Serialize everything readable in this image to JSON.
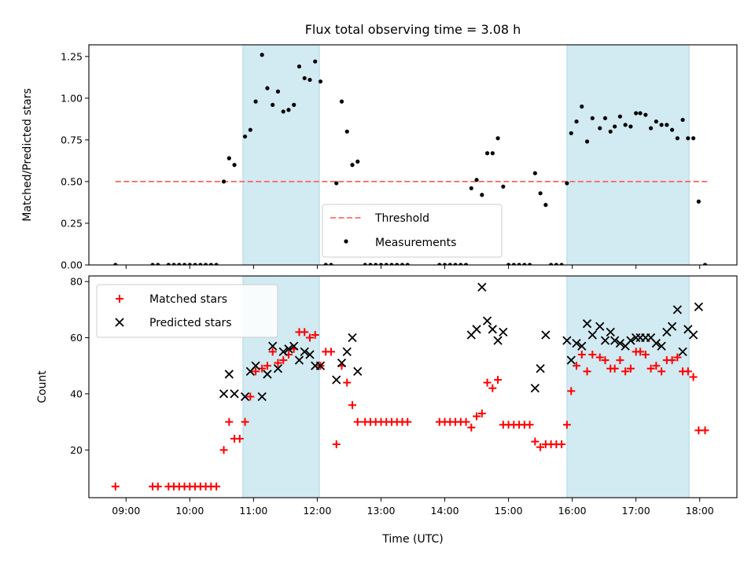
{
  "title": "Flux total observing time = 3.08 h",
  "colors": {
    "shade": "#add8e6",
    "threshold": "#ff6b6b",
    "measurement": "#000000",
    "matched": "#ff0000",
    "predicted": "#000000"
  },
  "chart_data": [
    {
      "type": "scatter",
      "ylabel": "Matched/Predicted stars",
      "ylim": [
        0,
        1.32
      ],
      "xlim": [
        "08:25",
        "18:35"
      ],
      "yticks": [
        0,
        0.25,
        0.5,
        0.75,
        1.0,
        1.25
      ],
      "ytick_labels": [
        "0.00",
        "0.25",
        "0.50",
        "0.75",
        "1.00",
        "1.25"
      ],
      "legend_position": "lower-center",
      "shaded_intervals": [
        [
          "10:50",
          "12:02"
        ],
        [
          "15:55",
          "17:50"
        ]
      ],
      "threshold": {
        "name": "Threshold",
        "value": 0.5,
        "x_range": [
          "08:50",
          "18:08"
        ]
      },
      "series": [
        {
          "name": "Measurements",
          "points": [
            [
              "08:50",
              0
            ],
            [
              "09:25",
              0
            ],
            [
              "09:30",
              0
            ],
            [
              "09:40",
              0
            ],
            [
              "09:45",
              0
            ],
            [
              "09:50",
              0
            ],
            [
              "09:55",
              0
            ],
            [
              "10:00",
              0
            ],
            [
              "10:05",
              0
            ],
            [
              "10:10",
              0
            ],
            [
              "10:15",
              0
            ],
            [
              "10:20",
              0
            ],
            [
              "10:25",
              0
            ],
            [
              "10:32",
              0.5
            ],
            [
              "10:37",
              0.64
            ],
            [
              "10:42",
              0.6
            ],
            [
              "10:52",
              0.77
            ],
            [
              "10:57",
              0.81
            ],
            [
              "11:02",
              0.98
            ],
            [
              "11:08",
              1.26
            ],
            [
              "11:13",
              1.06
            ],
            [
              "11:18",
              0.96
            ],
            [
              "11:23",
              1.04
            ],
            [
              "11:28",
              0.92
            ],
            [
              "11:33",
              0.93
            ],
            [
              "11:38",
              0.96
            ],
            [
              "11:43",
              1.19
            ],
            [
              "11:48",
              1.12
            ],
            [
              "11:53",
              1.11
            ],
            [
              "11:58",
              1.22
            ],
            [
              "12:03",
              1.1
            ],
            [
              "12:08",
              0
            ],
            [
              "12:13",
              0
            ],
            [
              "12:18",
              0.49
            ],
            [
              "12:23",
              0.98
            ],
            [
              "12:28",
              0.8
            ],
            [
              "12:33",
              0.6
            ],
            [
              "12:38",
              0.62
            ],
            [
              "12:45",
              0
            ],
            [
              "12:50",
              0
            ],
            [
              "12:55",
              0
            ],
            [
              "13:00",
              0
            ],
            [
              "13:05",
              0
            ],
            [
              "13:10",
              0
            ],
            [
              "13:15",
              0
            ],
            [
              "13:20",
              0
            ],
            [
              "13:25",
              0
            ],
            [
              "13:55",
              0
            ],
            [
              "14:00",
              0
            ],
            [
              "14:05",
              0
            ],
            [
              "14:10",
              0
            ],
            [
              "14:15",
              0
            ],
            [
              "14:20",
              0
            ],
            [
              "14:25",
              0.46
            ],
            [
              "14:30",
              0.51
            ],
            [
              "14:35",
              0.42
            ],
            [
              "14:40",
              0.67
            ],
            [
              "14:45",
              0.67
            ],
            [
              "14:50",
              0.76
            ],
            [
              "14:55",
              0.47
            ],
            [
              "15:00",
              0
            ],
            [
              "15:05",
              0
            ],
            [
              "15:10",
              0
            ],
            [
              "15:15",
              0
            ],
            [
              "15:20",
              0
            ],
            [
              "15:25",
              0.55
            ],
            [
              "15:30",
              0.43
            ],
            [
              "15:35",
              0.36
            ],
            [
              "15:40",
              0
            ],
            [
              "15:45",
              0
            ],
            [
              "15:50",
              0
            ],
            [
              "15:55",
              0.49
            ],
            [
              "15:59",
              0.79
            ],
            [
              "16:04",
              0.86
            ],
            [
              "16:09",
              0.95
            ],
            [
              "16:14",
              0.74
            ],
            [
              "16:19",
              0.88
            ],
            [
              "16:26",
              0.82
            ],
            [
              "16:31",
              0.88
            ],
            [
              "16:36",
              0.8
            ],
            [
              "16:40",
              0.83
            ],
            [
              "16:45",
              0.89
            ],
            [
              "16:50",
              0.84
            ],
            [
              "16:55",
              0.83
            ],
            [
              "17:00",
              0.91
            ],
            [
              "17:04",
              0.91
            ],
            [
              "17:09",
              0.9
            ],
            [
              "17:14",
              0.82
            ],
            [
              "17:19",
              0.86
            ],
            [
              "17:24",
              0.84
            ],
            [
              "17:29",
              0.84
            ],
            [
              "17:34",
              0.81
            ],
            [
              "17:39",
              0.76
            ],
            [
              "17:44",
              0.87
            ],
            [
              "17:49",
              0.76
            ],
            [
              "17:54",
              0.76
            ],
            [
              "17:59",
              0.38
            ],
            [
              "18:05",
              0
            ]
          ]
        }
      ]
    },
    {
      "type": "scatter",
      "xlabel": "Time (UTC)",
      "ylabel": "Count",
      "ylim": [
        3,
        82
      ],
      "xlim": [
        "08:25",
        "18:35"
      ],
      "yticks": [
        20,
        40,
        60,
        80
      ],
      "ytick_labels": [
        "20",
        "40",
        "60",
        "80"
      ],
      "xticks": [
        "09:00",
        "10:00",
        "11:00",
        "12:00",
        "13:00",
        "14:00",
        "15:00",
        "16:00",
        "17:00",
        "18:00"
      ],
      "legend_position": "top-left",
      "shaded_intervals": [
        [
          "10:50",
          "12:02"
        ],
        [
          "15:55",
          "17:50"
        ]
      ],
      "series": [
        {
          "name": "Matched stars",
          "points": [
            [
              "08:50",
              7
            ],
            [
              "09:25",
              7
            ],
            [
              "09:30",
              7
            ],
            [
              "09:40",
              7
            ],
            [
              "09:45",
              7
            ],
            [
              "09:50",
              7
            ],
            [
              "09:55",
              7
            ],
            [
              "10:00",
              7
            ],
            [
              "10:05",
              7
            ],
            [
              "10:10",
              7
            ],
            [
              "10:15",
              7
            ],
            [
              "10:20",
              7
            ],
            [
              "10:25",
              7
            ],
            [
              "10:32",
              20
            ],
            [
              "10:37",
              30
            ],
            [
              "10:42",
              24
            ],
            [
              "10:47",
              24
            ],
            [
              "10:52",
              30
            ],
            [
              "10:57",
              39
            ],
            [
              "11:02",
              48
            ],
            [
              "11:08",
              49
            ],
            [
              "11:13",
              50
            ],
            [
              "11:18",
              55
            ],
            [
              "11:23",
              51
            ],
            [
              "11:28",
              52
            ],
            [
              "11:33",
              54
            ],
            [
              "11:38",
              56
            ],
            [
              "11:43",
              62
            ],
            [
              "11:48",
              62
            ],
            [
              "11:53",
              60
            ],
            [
              "11:58",
              61
            ],
            [
              "12:03",
              50
            ],
            [
              "12:08",
              55
            ],
            [
              "12:13",
              55
            ],
            [
              "12:18",
              22
            ],
            [
              "12:23",
              50
            ],
            [
              "12:28",
              44
            ],
            [
              "12:33",
              36
            ],
            [
              "12:38",
              30
            ],
            [
              "12:45",
              30
            ],
            [
              "12:50",
              30
            ],
            [
              "12:55",
              30
            ],
            [
              "13:00",
              30
            ],
            [
              "13:05",
              30
            ],
            [
              "13:10",
              30
            ],
            [
              "13:15",
              30
            ],
            [
              "13:20",
              30
            ],
            [
              "13:25",
              30
            ],
            [
              "13:55",
              30
            ],
            [
              "14:00",
              30
            ],
            [
              "14:05",
              30
            ],
            [
              "14:10",
              30
            ],
            [
              "14:15",
              30
            ],
            [
              "14:20",
              30
            ],
            [
              "14:25",
              28
            ],
            [
              "14:30",
              32
            ],
            [
              "14:35",
              33
            ],
            [
              "14:40",
              44
            ],
            [
              "14:45",
              42
            ],
            [
              "14:50",
              45
            ],
            [
              "14:55",
              29
            ],
            [
              "15:00",
              29
            ],
            [
              "15:05",
              29
            ],
            [
              "15:10",
              29
            ],
            [
              "15:15",
              29
            ],
            [
              "15:20",
              29
            ],
            [
              "15:25",
              23
            ],
            [
              "15:30",
              21
            ],
            [
              "15:35",
              22
            ],
            [
              "15:40",
              22
            ],
            [
              "15:45",
              22
            ],
            [
              "15:50",
              22
            ],
            [
              "15:55",
              29
            ],
            [
              "15:59",
              41
            ],
            [
              "16:04",
              50
            ],
            [
              "16:09",
              54
            ],
            [
              "16:14",
              48
            ],
            [
              "16:19",
              54
            ],
            [
              "16:26",
              53
            ],
            [
              "16:31",
              52
            ],
            [
              "16:36",
              49
            ],
            [
              "16:40",
              49
            ],
            [
              "16:45",
              52
            ],
            [
              "16:50",
              48
            ],
            [
              "16:55",
              49
            ],
            [
              "17:00",
              55
            ],
            [
              "17:04",
              55
            ],
            [
              "17:09",
              54
            ],
            [
              "17:14",
              49
            ],
            [
              "17:19",
              50
            ],
            [
              "17:24",
              48
            ],
            [
              "17:29",
              52
            ],
            [
              "17:34",
              52
            ],
            [
              "17:39",
              53
            ],
            [
              "17:44",
              48
            ],
            [
              "17:49",
              48
            ],
            [
              "17:54",
              46
            ],
            [
              "17:59",
              27
            ],
            [
              "18:05",
              27
            ]
          ]
        },
        {
          "name": "Predicted stars",
          "points": [
            [
              "10:32",
              40
            ],
            [
              "10:37",
              47
            ],
            [
              "10:42",
              40
            ],
            [
              "10:52",
              39
            ],
            [
              "10:57",
              48
            ],
            [
              "11:02",
              50
            ],
            [
              "11:08",
              39
            ],
            [
              "11:13",
              47
            ],
            [
              "11:18",
              57
            ],
            [
              "11:23",
              49
            ],
            [
              "11:28",
              55
            ],
            [
              "11:33",
              56
            ],
            [
              "11:38",
              57
            ],
            [
              "11:43",
              52
            ],
            [
              "11:48",
              55
            ],
            [
              "11:53",
              54
            ],
            [
              "11:58",
              50
            ],
            [
              "12:03",
              50
            ],
            [
              "12:18",
              45
            ],
            [
              "12:23",
              51
            ],
            [
              "12:28",
              55
            ],
            [
              "12:33",
              60
            ],
            [
              "12:38",
              48
            ],
            [
              "14:25",
              61
            ],
            [
              "14:30",
              63
            ],
            [
              "14:35",
              78
            ],
            [
              "14:40",
              66
            ],
            [
              "14:45",
              63
            ],
            [
              "14:50",
              59
            ],
            [
              "14:55",
              62
            ],
            [
              "15:25",
              42
            ],
            [
              "15:30",
              49
            ],
            [
              "15:35",
              61
            ],
            [
              "15:55",
              59
            ],
            [
              "15:59",
              52
            ],
            [
              "16:04",
              58
            ],
            [
              "16:09",
              57
            ],
            [
              "16:14",
              65
            ],
            [
              "16:19",
              61
            ],
            [
              "16:26",
              64
            ],
            [
              "16:31",
              59
            ],
            [
              "16:36",
              62
            ],
            [
              "16:40",
              59
            ],
            [
              "16:45",
              58
            ],
            [
              "16:50",
              57
            ],
            [
              "16:55",
              59
            ],
            [
              "17:00",
              60
            ],
            [
              "17:04",
              60
            ],
            [
              "17:09",
              60
            ],
            [
              "17:14",
              60
            ],
            [
              "17:19",
              58
            ],
            [
              "17:24",
              57
            ],
            [
              "17:29",
              62
            ],
            [
              "17:34",
              64
            ],
            [
              "17:39",
              70
            ],
            [
              "17:44",
              55
            ],
            [
              "17:49",
              63
            ],
            [
              "17:54",
              61
            ],
            [
              "17:59",
              71
            ]
          ]
        }
      ]
    }
  ]
}
